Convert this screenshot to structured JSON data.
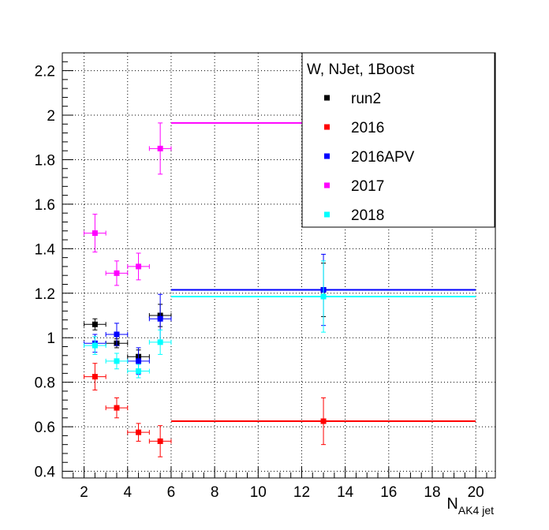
{
  "chart_data": {
    "type": "scatter",
    "title": "",
    "xlabel": {
      "main": "N",
      "sub": "AK4 jet"
    },
    "ylabel": "",
    "xlim": [
      1,
      20.9
    ],
    "ylim": [
      0.37,
      2.28
    ],
    "xticks": [
      2,
      4,
      6,
      8,
      10,
      12,
      14,
      16,
      18,
      20
    ],
    "yticks": [
      0.4,
      0.6,
      0.8,
      1,
      1.2,
      1.4,
      1.6,
      1.8,
      2,
      2.2
    ],
    "grid": true,
    "legend": {
      "title": "W, NJet, 1Boost",
      "position": "top-right"
    },
    "series": [
      {
        "name": "run2",
        "color": "#000000",
        "points": [
          {
            "x": 2.5,
            "xlo": 2,
            "xhi": 3,
            "y": 1.06,
            "yerr": 0.025
          },
          {
            "x": 3.5,
            "xlo": 3,
            "xhi": 4,
            "y": 0.975,
            "yerr": 0.02
          },
          {
            "x": 4.5,
            "xlo": 4,
            "xhi": 5,
            "y": 0.915,
            "yerr": 0.03
          },
          {
            "x": 5.5,
            "xlo": 5,
            "xhi": 6,
            "y": 1.1,
            "yerr": 0.05
          },
          {
            "x": 13,
            "xlo": 6,
            "xhi": 20,
            "y": 1.215,
            "yerr": 0.12
          }
        ]
      },
      {
        "name": "2016",
        "color": "#ff0000",
        "points": [
          {
            "x": 2.5,
            "xlo": 2,
            "xhi": 3,
            "y": 0.825,
            "yerr": 0.06
          },
          {
            "x": 3.5,
            "xlo": 3,
            "xhi": 4,
            "y": 0.685,
            "yerr": 0.045
          },
          {
            "x": 4.5,
            "xlo": 4,
            "xhi": 5,
            "y": 0.575,
            "yerr": 0.04
          },
          {
            "x": 5.5,
            "xlo": 5,
            "xhi": 6,
            "y": 0.535,
            "yerr": 0.07
          },
          {
            "x": 13,
            "xlo": 6,
            "xhi": 20,
            "y": 0.625,
            "yerr": 0.105
          }
        ]
      },
      {
        "name": "2016APV",
        "color": "#0000ff",
        "points": [
          {
            "x": 2.5,
            "xlo": 2,
            "xhi": 3,
            "y": 0.975,
            "yerr": 0.04
          },
          {
            "x": 3.5,
            "xlo": 3,
            "xhi": 4,
            "y": 1.015,
            "yerr": 0.05
          },
          {
            "x": 4.5,
            "xlo": 4,
            "xhi": 5,
            "y": 0.895,
            "yerr": 0.06
          },
          {
            "x": 5.5,
            "xlo": 5,
            "xhi": 6,
            "y": 1.085,
            "yerr": 0.11
          },
          {
            "x": 13,
            "xlo": 6,
            "xhi": 20,
            "y": 1.215,
            "yerr": 0.16
          }
        ]
      },
      {
        "name": "2017",
        "color": "#ff00ff",
        "points": [
          {
            "x": 2.5,
            "xlo": 2,
            "xhi": 3,
            "y": 1.47,
            "yerr": 0.085
          },
          {
            "x": 3.5,
            "xlo": 3,
            "xhi": 4,
            "y": 1.29,
            "yerr": 0.055
          },
          {
            "x": 4.5,
            "xlo": 4,
            "xhi": 5,
            "y": 1.32,
            "yerr": 0.06
          },
          {
            "x": 5.5,
            "xlo": 5,
            "xhi": 6,
            "y": 1.85,
            "yerr": 0.115
          },
          {
            "x": 13,
            "xlo": 6,
            "xhi": 20,
            "y": 1.965,
            "yerr": 0
          }
        ]
      },
      {
        "name": "2018",
        "color": "#00ffff",
        "points": [
          {
            "x": 2.5,
            "xlo": 2,
            "xhi": 3,
            "y": 0.965,
            "yerr": 0.04
          },
          {
            "x": 3.5,
            "xlo": 3,
            "xhi": 4,
            "y": 0.895,
            "yerr": 0.035
          },
          {
            "x": 4.5,
            "xlo": 4,
            "xhi": 5,
            "y": 0.85,
            "yerr": 0.03
          },
          {
            "x": 5.5,
            "xlo": 5,
            "xhi": 6,
            "y": 0.98,
            "yerr": 0.055
          },
          {
            "x": 13,
            "xlo": 6,
            "xhi": 20,
            "y": 1.185,
            "yerr": 0.16
          }
        ]
      }
    ]
  }
}
